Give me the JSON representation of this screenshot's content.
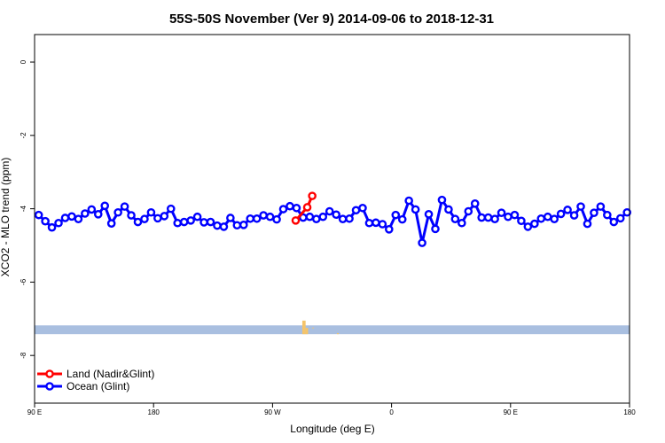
{
  "chart_data": {
    "type": "line",
    "title": "55S-50S November (Ver 9)   2014-09-06 to 2018-12-31",
    "xlabel": "Longitude (deg E)",
    "ylabel": "XCO2 - MLO trend (ppm)",
    "xlim": [
      90,
      450
    ],
    "ylim": [
      -9.3,
      0.75
    ],
    "x_ticks": [
      {
        "value": 90,
        "label": "90 E"
      },
      {
        "value": 162,
        "label": "180"
      },
      {
        "value": 234,
        "label": "90 W"
      },
      {
        "value": 306,
        "label": "0"
      },
      {
        "value": 378,
        "label": "90 E"
      },
      {
        "value": 450,
        "label": "180"
      }
    ],
    "y_ticks": [
      {
        "value": 0,
        "label": "0"
      },
      {
        "value": -2,
        "label": "-2"
      },
      {
        "value": -4,
        "label": "-4"
      },
      {
        "value": -6,
        "label": "-6"
      },
      {
        "value": -8,
        "label": "-8"
      }
    ],
    "grid": false,
    "legend_position": "bottom-left",
    "series": [
      {
        "name": "Land (Nadir&Glint)",
        "color": "#ff0000",
        "x": [
          248,
          255,
          258
        ],
        "y": [
          -4.32,
          -3.96,
          -3.65
        ]
      },
      {
        "name": "Ocean (Glint)",
        "color": "#0000ff",
        "x": [
          92.5,
          96.5,
          100.5,
          104.5,
          108.5,
          112.5,
          116.5,
          120.5,
          124.5,
          128.5,
          132.5,
          136.5,
          140.5,
          144.5,
          148.5,
          152.5,
          156.5,
          160.5,
          164.5,
          168.5,
          172.5,
          176.5,
          180.5,
          184.5,
          188.5,
          192.5,
          196.5,
          200.5,
          204.5,
          208.5,
          212.5,
          216.5,
          220.5,
          224.5,
          228.5,
          232.5,
          236.5,
          240.5,
          244.5,
          248.5,
          252.5,
          256.5,
          260.5,
          264.5,
          268.5,
          272.5,
          276.5,
          280.5,
          284.5,
          288.5,
          292.5,
          296.5,
          300.5,
          304.5,
          308.5,
          312.5,
          316.5,
          320.5,
          324.5,
          328.5,
          332.5,
          336.5,
          340.5,
          344.5,
          348.5,
          352.5,
          356.5,
          360.5,
          364.5,
          368.5,
          372.5,
          376.5,
          380.5,
          384.5,
          388.5,
          392.5,
          396.5,
          400.5,
          404.5,
          408.5,
          412.5,
          416.5,
          420.5,
          424.5,
          428.5,
          432.5,
          436.5,
          440.5,
          444.5,
          448.5
        ],
        "y": [
          -4.17,
          -4.34,
          -4.51,
          -4.39,
          -4.25,
          -4.21,
          -4.28,
          -4.13,
          -4.02,
          -4.15,
          -3.92,
          -4.4,
          -4.1,
          -3.94,
          -4.18,
          -4.36,
          -4.28,
          -4.1,
          -4.26,
          -4.2,
          -4.0,
          -4.39,
          -4.36,
          -4.32,
          -4.22,
          -4.37,
          -4.36,
          -4.46,
          -4.49,
          -4.25,
          -4.45,
          -4.44,
          -4.27,
          -4.27,
          -4.18,
          -4.22,
          -4.29,
          -4.01,
          -3.93,
          -3.98,
          -4.24,
          -4.22,
          -4.28,
          -4.22,
          -4.07,
          -4.16,
          -4.28,
          -4.27,
          -4.04,
          -3.98,
          -4.39,
          -4.38,
          -4.42,
          -4.56,
          -4.17,
          -4.29,
          -3.78,
          -4.02,
          -4.93,
          -4.15,
          -4.55,
          -3.76,
          -4.02,
          -4.28,
          -4.39,
          -4.07,
          -3.86,
          -4.24,
          -4.24,
          -4.28,
          -4.11,
          -4.22,
          -4.17,
          -4.33,
          -4.49,
          -4.41,
          -4.27,
          -4.22,
          -4.28,
          -4.14,
          -4.03,
          -4.18,
          -3.94,
          -4.41,
          -4.11,
          -3.94,
          -4.17,
          -4.36,
          -4.26,
          -4.1
        ]
      }
    ],
    "land_mask_band": {
      "y_range": [
        -7.18,
        -7.42
      ],
      "ocean_color": "#a9bfe0",
      "land_color": "#f5c46a",
      "land_segments": [
        {
          "x_range": [
            252,
            254
          ],
          "y_range": [
            -7.05,
            -7.42
          ]
        },
        {
          "x_range": [
            254,
            255.5
          ],
          "y_range": [
            -7.25,
            -7.42
          ]
        },
        {
          "x_range": [
            258,
            259
          ],
          "y_range": [
            -7.24,
            -7.26
          ]
        },
        {
          "x_range": [
            273,
            274
          ],
          "y_range": [
            -7.39,
            -7.42
          ]
        }
      ]
    }
  }
}
